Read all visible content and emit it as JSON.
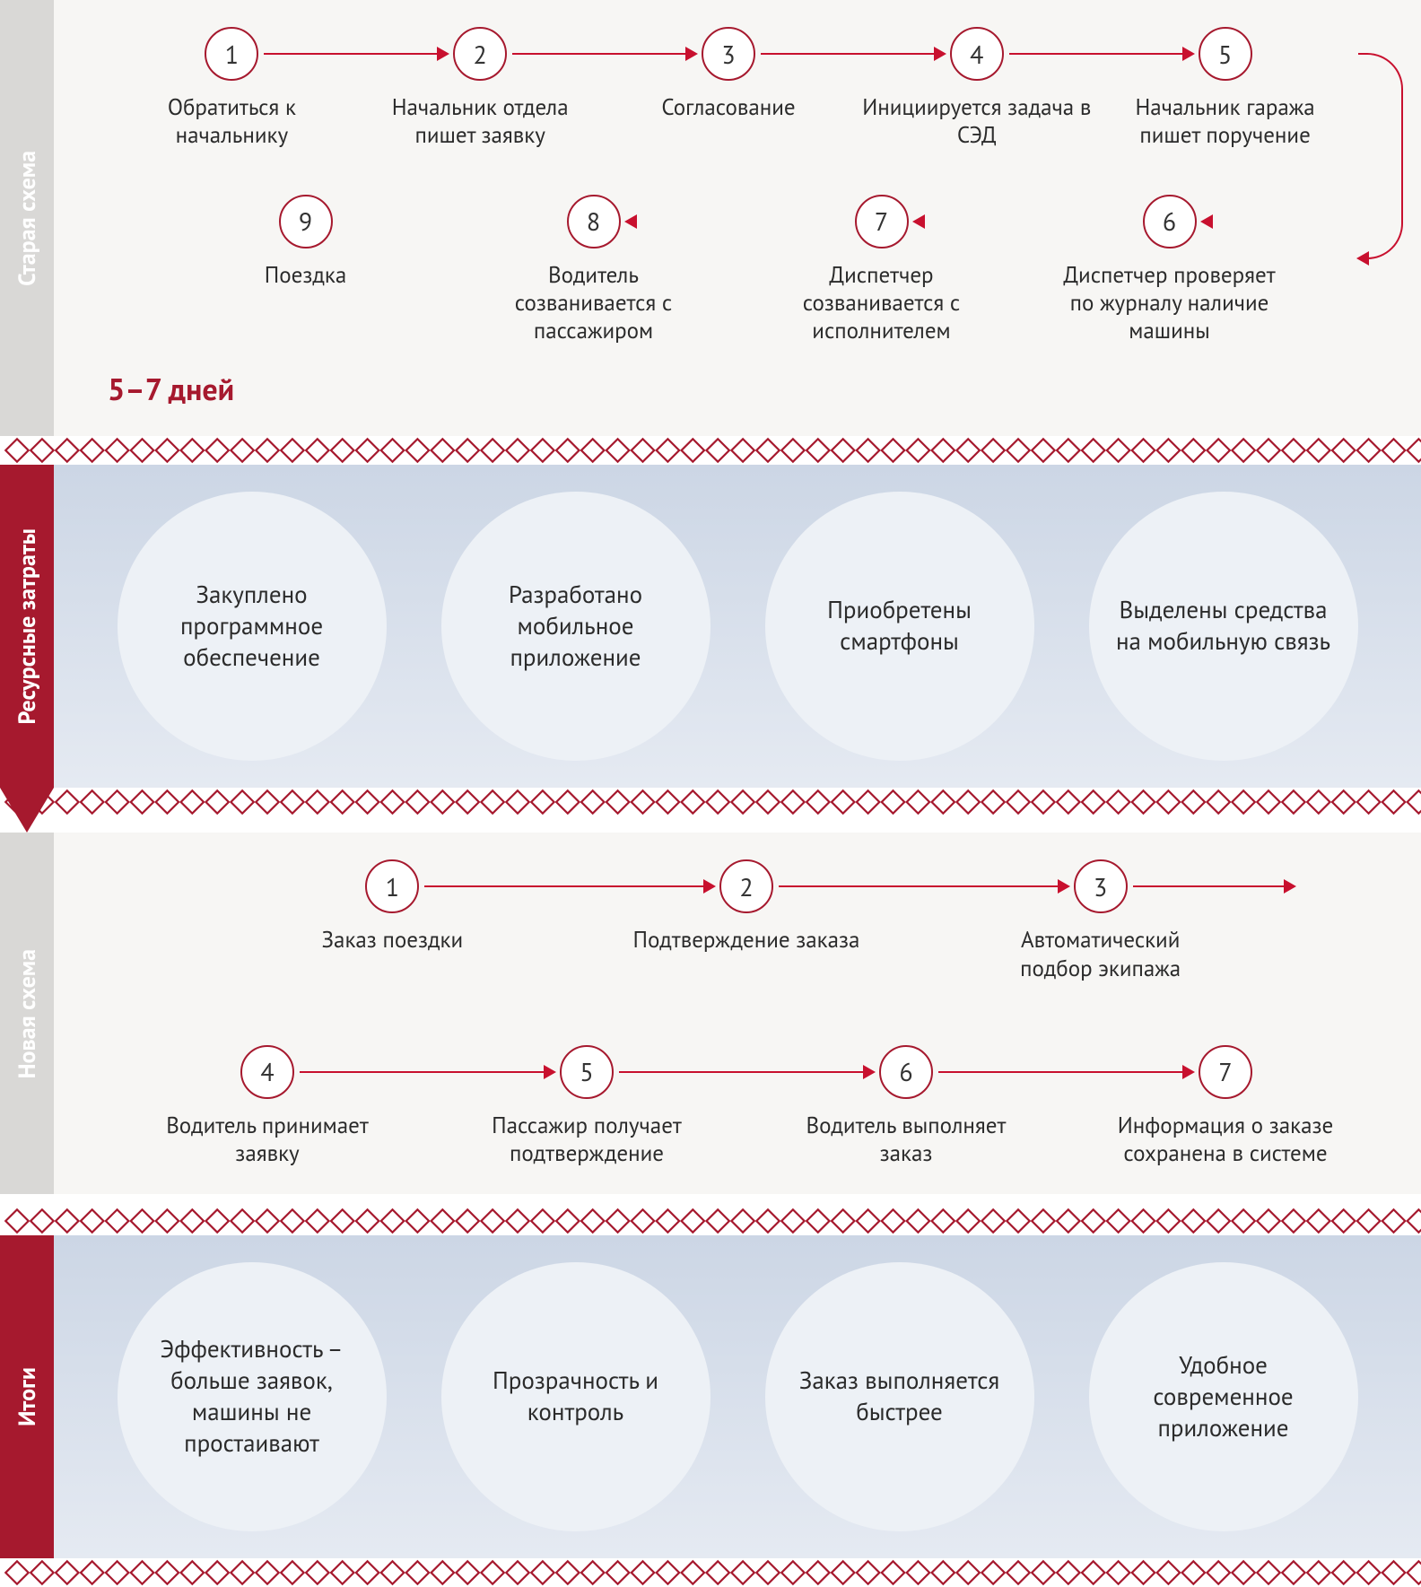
{
  "colors": {
    "accent_red": "#a6192e",
    "arrow_red": "#c8102e",
    "text": "#2b2b2b",
    "flow_bg": "#f7f6f4",
    "blue_grad_top": "#ccd6e5",
    "blue_grad_bottom": "#e5eaf2",
    "bubble_bg": "#edf1f6",
    "side_gray": "#d9d8d6",
    "side_gray_text": "#fefefe",
    "white": "#ffffff"
  },
  "fonts": {
    "body_size": 25,
    "circle_number_size": 28,
    "bubble_size": 27,
    "side_label_size": 26,
    "duration_size": 34
  },
  "old_scheme": {
    "label": "Старая схема",
    "duration": "5–7 дней",
    "row1": [
      {
        "n": "1",
        "text": "Обратиться к начальнику"
      },
      {
        "n": "2",
        "text": "Начальник отдела пишет заявку"
      },
      {
        "n": "3",
        "text": "Согласование"
      },
      {
        "n": "4",
        "text": "Инициируется задача в СЭД"
      },
      {
        "n": "5",
        "text": "Начальник гаража пишет поручение"
      }
    ],
    "row2": [
      {
        "n": "9",
        "text": "Поездка"
      },
      {
        "n": "8",
        "text": "Водитель созванивается с пассажиром"
      },
      {
        "n": "7",
        "text": "Диспетчер созванивается с исполнителем"
      },
      {
        "n": "6",
        "text": "Диспетчер проверяет по журналу наличие машины"
      }
    ]
  },
  "resources": {
    "label": "Ресурсные затраты",
    "items": [
      "Закуплено программное обеспечение",
      "Разработано мобильное приложение",
      "Приобретены смартфоны",
      "Выделены средства на мобильную связь"
    ]
  },
  "new_scheme": {
    "label": "Новая схема",
    "row1": [
      {
        "n": "1",
        "text": "Заказ поездки"
      },
      {
        "n": "2",
        "text": "Подтверждение заказа"
      },
      {
        "n": "3",
        "text": "Автоматический подбор экипажа"
      }
    ],
    "row2": [
      {
        "n": "4",
        "text": "Водитель принимает заявку"
      },
      {
        "n": "5",
        "text": "Пассажир получает подтверждение"
      },
      {
        "n": "6",
        "text": "Водитель выполняет заказ"
      },
      {
        "n": "7",
        "text": "Информация о заказе сохранена в системе"
      }
    ]
  },
  "results": {
    "label": "Итоги",
    "items": [
      "Эффективность – больше заявок, машины не простаивают",
      "Прозрачность и контроль",
      "Заказ выполняется быстрее",
      "Удобное современное приложение"
    ]
  },
  "ornament": {
    "diamond_size": 18,
    "stroke": "#a6192e",
    "stroke_width": 2.2
  }
}
